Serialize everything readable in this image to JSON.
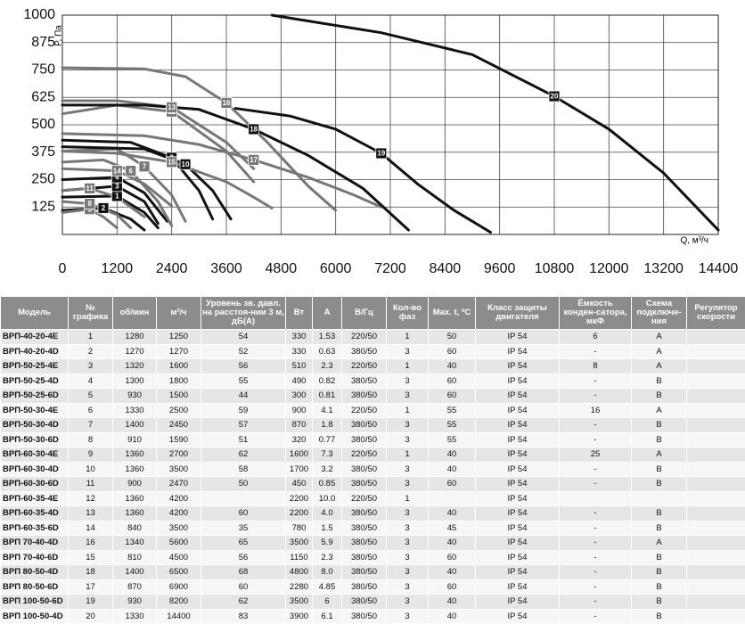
{
  "chart_data": {
    "type": "line",
    "y_label": "P, Па",
    "x_label": "Q, м³/ч",
    "xlim": [
      0,
      14400
    ],
    "xticks": [
      0,
      1200,
      2400,
      3600,
      4800,
      6000,
      7200,
      8400,
      9600,
      10800,
      12000,
      13200,
      14400
    ],
    "ylim": [
      0,
      1000
    ],
    "yticks": [
      125,
      250,
      375,
      500,
      625,
      750,
      875,
      1000
    ],
    "grid": true,
    "series": [
      {
        "name": "1",
        "color": "#111111",
        "x": [
          0,
          1200,
          1800,
          2100
        ],
        "values": [
          170,
          175,
          100,
          30
        ]
      },
      {
        "name": "2",
        "color": "#111111",
        "x": [
          0,
          900,
          1500,
          1800
        ],
        "values": [
          110,
          120,
          70,
          20
        ]
      },
      {
        "name": "3",
        "color": "#111111",
        "x": [
          0,
          1200,
          1800,
          2100
        ],
        "values": [
          200,
          220,
          150,
          50
        ]
      },
      {
        "name": "4",
        "color": "#111111",
        "x": [
          0,
          1200,
          1800,
          2300
        ],
        "values": [
          250,
          260,
          190,
          60
        ]
      },
      {
        "name": "5",
        "color": "#777777",
        "x": [
          0,
          600,
          900,
          1200
        ],
        "values": [
          100,
          115,
          80,
          30
        ]
      },
      {
        "name": "6",
        "color": "#777777",
        "x": [
          0,
          900,
          1500,
          2100,
          2400
        ],
        "values": [
          330,
          340,
          290,
          150,
          40
        ]
      },
      {
        "name": "7",
        "color": "#777777",
        "x": [
          0,
          1200,
          1800,
          2400,
          2700
        ],
        "values": [
          380,
          390,
          310,
          180,
          60
        ]
      },
      {
        "name": "8",
        "color": "#777777",
        "x": [
          0,
          600,
          1200,
          1500
        ],
        "values": [
          150,
          140,
          90,
          30
        ]
      },
      {
        "name": "9",
        "color": "#111111",
        "x": [
          0,
          1500,
          2400,
          3000,
          3300
        ],
        "values": [
          430,
          420,
          350,
          200,
          70
        ]
      },
      {
        "name": "10",
        "color": "#111111",
        "x": [
          0,
          1800,
          2700,
          3300,
          3700
        ],
        "values": [
          400,
          390,
          320,
          200,
          70
        ]
      },
      {
        "name": "11",
        "color": "#777777",
        "x": [
          0,
          600,
          1200,
          1800
        ],
        "values": [
          200,
          210,
          170,
          80
        ]
      },
      {
        "name": "12",
        "color": "#777777",
        "x": [
          0,
          1200,
          2400,
          3600,
          4200
        ],
        "values": [
          550,
          590,
          560,
          380,
          240
        ]
      },
      {
        "name": "13",
        "color": "#777777",
        "x": [
          0,
          1200,
          2400,
          3600,
          4200
        ],
        "values": [
          610,
          610,
          580,
          420,
          300
        ]
      },
      {
        "name": "14",
        "color": "#777777",
        "x": [
          0,
          1200,
          1800,
          2400
        ],
        "values": [
          300,
          290,
          230,
          130
        ]
      },
      {
        "name": "15",
        "color": "#777777",
        "x": [
          0,
          1200,
          2400,
          3600,
          4200,
          4600
        ],
        "values": [
          380,
          370,
          330,
          240,
          170,
          120
        ]
      },
      {
        "name": "16",
        "color": "#777777",
        "x": [
          0,
          1800,
          2700,
          3600,
          4500,
          5400,
          6000
        ],
        "values": [
          760,
          755,
          720,
          600,
          420,
          220,
          110
        ]
      },
      {
        "name": "17",
        "color": "#777777",
        "x": [
          0,
          1800,
          3000,
          4200,
          5400,
          6400,
          7000
        ],
        "values": [
          460,
          450,
          410,
          340,
          260,
          180,
          125
        ]
      },
      {
        "name": "18",
        "color": "#111111",
        "x": [
          0,
          1800,
          3000,
          4200,
          5400,
          6600,
          7600
        ],
        "values": [
          590,
          590,
          570,
          480,
          360,
          210,
          20
        ]
      },
      {
        "name": "19",
        "color": "#111111",
        "x": [
          3800,
          5000,
          6000,
          7000,
          7800,
          8600,
          9400
        ],
        "values": [
          575,
          540,
          480,
          370,
          230,
          110,
          10
        ]
      },
      {
        "name": "20",
        "color": "#111111",
        "x": [
          4600,
          7000,
          9000,
          10800,
          12000,
          13200,
          14400
        ],
        "values": [
          1000,
          920,
          820,
          630,
          480,
          280,
          20
        ]
      }
    ]
  },
  "table": {
    "header": [
      "Модель",
      "№ графика",
      "об/мин",
      "м³/ч",
      "Уровень зв. давл. на расстоя-нии 3 м, дБ(А)",
      "Вт",
      "А",
      "В/Гц",
      "Кол-во фаз",
      "Max. t, ºC",
      "Класс защиты двигателя",
      "Ёмкость конден-сатора, мкФ",
      "Схема подключе-ния",
      "Регулятор скорости"
    ],
    "rows": [
      [
        "ВРП-40-20-4E",
        "1",
        "1280",
        "1250",
        "54",
        "330",
        "1.53",
        "220/50",
        "1",
        "50",
        "IP 54",
        "6",
        "A",
        null
      ],
      [
        "ВРП-40-20-4D",
        "2",
        "1270",
        "1270",
        "52",
        "330",
        "0.63",
        "380/50",
        "3",
        "60",
        "IP 54",
        "-",
        "A",
        null
      ],
      [
        "ВРП-50-25-4E",
        "3",
        "1320",
        "1600",
        "56",
        "510",
        "2.3",
        "220/50",
        "1",
        "40",
        "IP 54",
        "8",
        "A",
        null
      ],
      [
        "ВРП-50-25-4D",
        "4",
        "1300",
        "1800",
        "55",
        "490",
        "0.82",
        "380/50",
        "3",
        "60",
        "IP 54",
        "-",
        "B",
        null
      ],
      [
        "ВРП-50-25-6D",
        "5",
        "930",
        "1500",
        "44",
        "300",
        "0.81",
        "380/50",
        "3",
        "60",
        "IP 54",
        "-",
        "B",
        null
      ],
      [
        "ВРП-50-30-4E",
        "6",
        "1330",
        "2500",
        "59",
        "900",
        "4.1",
        "220/50",
        "1",
        "55",
        "IP 54",
        "16",
        "A",
        null
      ],
      [
        "ВРП-50-30-4D",
        "7",
        "1400",
        "2450",
        "57",
        "870",
        "1.8",
        "380/50",
        "3",
        "55",
        "IP 54",
        "-",
        "B",
        null
      ],
      [
        "ВРП-50-30-6D",
        "8",
        "910",
        "1590",
        "51",
        "320",
        "0.77",
        "380/50",
        "3",
        "55",
        "IP 54",
        "-",
        "B",
        null
      ],
      [
        "ВРП-60-30-4E",
        "9",
        "1360",
        "2700",
        "62",
        "1600",
        "7.3",
        "220/50",
        "1",
        "40",
        "IP 54",
        "25",
        "A",
        null
      ],
      [
        "ВРП-60-30-4D",
        "10",
        "1360",
        "3500",
        "58",
        "1700",
        "3.2",
        "380/50",
        "3",
        "40",
        "IP 54",
        "-",
        "B",
        null
      ],
      [
        "ВРП-60-30-6D",
        "11",
        "900",
        "2470",
        "50",
        "450",
        "0.85",
        "380/50",
        "3",
        "60",
        "IP 54",
        "-",
        "B",
        null
      ],
      [
        "ВРП-60-35-4E",
        "12",
        "1360",
        "4200",
        null,
        "2200",
        "10.0",
        "220/50",
        "1",
        null,
        "IP 54",
        null,
        null,
        null
      ],
      [
        "ВРП-60-35-4D",
        "13",
        "1360",
        "4200",
        "60",
        "2200",
        "4.0",
        "380/50",
        "3",
        "40",
        "IP 54",
        "-",
        "B",
        null
      ],
      [
        "ВРП-60-35-6D",
        "14",
        "840",
        "3500",
        "35",
        "780",
        "1.5",
        "380/50",
        "3",
        "45",
        "IP 54",
        "-",
        "B",
        null
      ],
      [
        "ВРП 70-40-4D",
        "16",
        "1340",
        "5600",
        "65",
        "3500",
        "5.9",
        "380/50",
        "3",
        "40",
        "IP 54",
        "-",
        "A",
        null
      ],
      [
        "ВРП 70-40-6D",
        "15",
        "810",
        "4500",
        "56",
        "1150",
        "2.3",
        "380/50",
        "3",
        "60",
        "IP 54",
        "-",
        "B",
        null
      ],
      [
        "ВРП 80-50-4D",
        "18",
        "1400",
        "6500",
        "68",
        "4800",
        "8.0",
        "380/50",
        "3",
        "40",
        "IP 54",
        "-",
        "B",
        null
      ],
      [
        "ВРП 80-50-6D",
        "17",
        "870",
        "6900",
        "60",
        "2280",
        "4.85",
        "380/50",
        "3",
        "60",
        "IP 54",
        "-",
        "B",
        null
      ],
      [
        "ВРП 100-50-6D",
        "19",
        "930",
        "8200",
        "62",
        "3500",
        "6",
        "380/50",
        "3",
        "40",
        "IP 54",
        "-",
        "B",
        null
      ],
      [
        "ВРП 100-50-4D",
        "20",
        "1330",
        "14400",
        "83",
        "3900",
        "6.1",
        "380/50",
        "3",
        "40",
        "IP 54",
        "-",
        "B",
        null
      ]
    ]
  }
}
